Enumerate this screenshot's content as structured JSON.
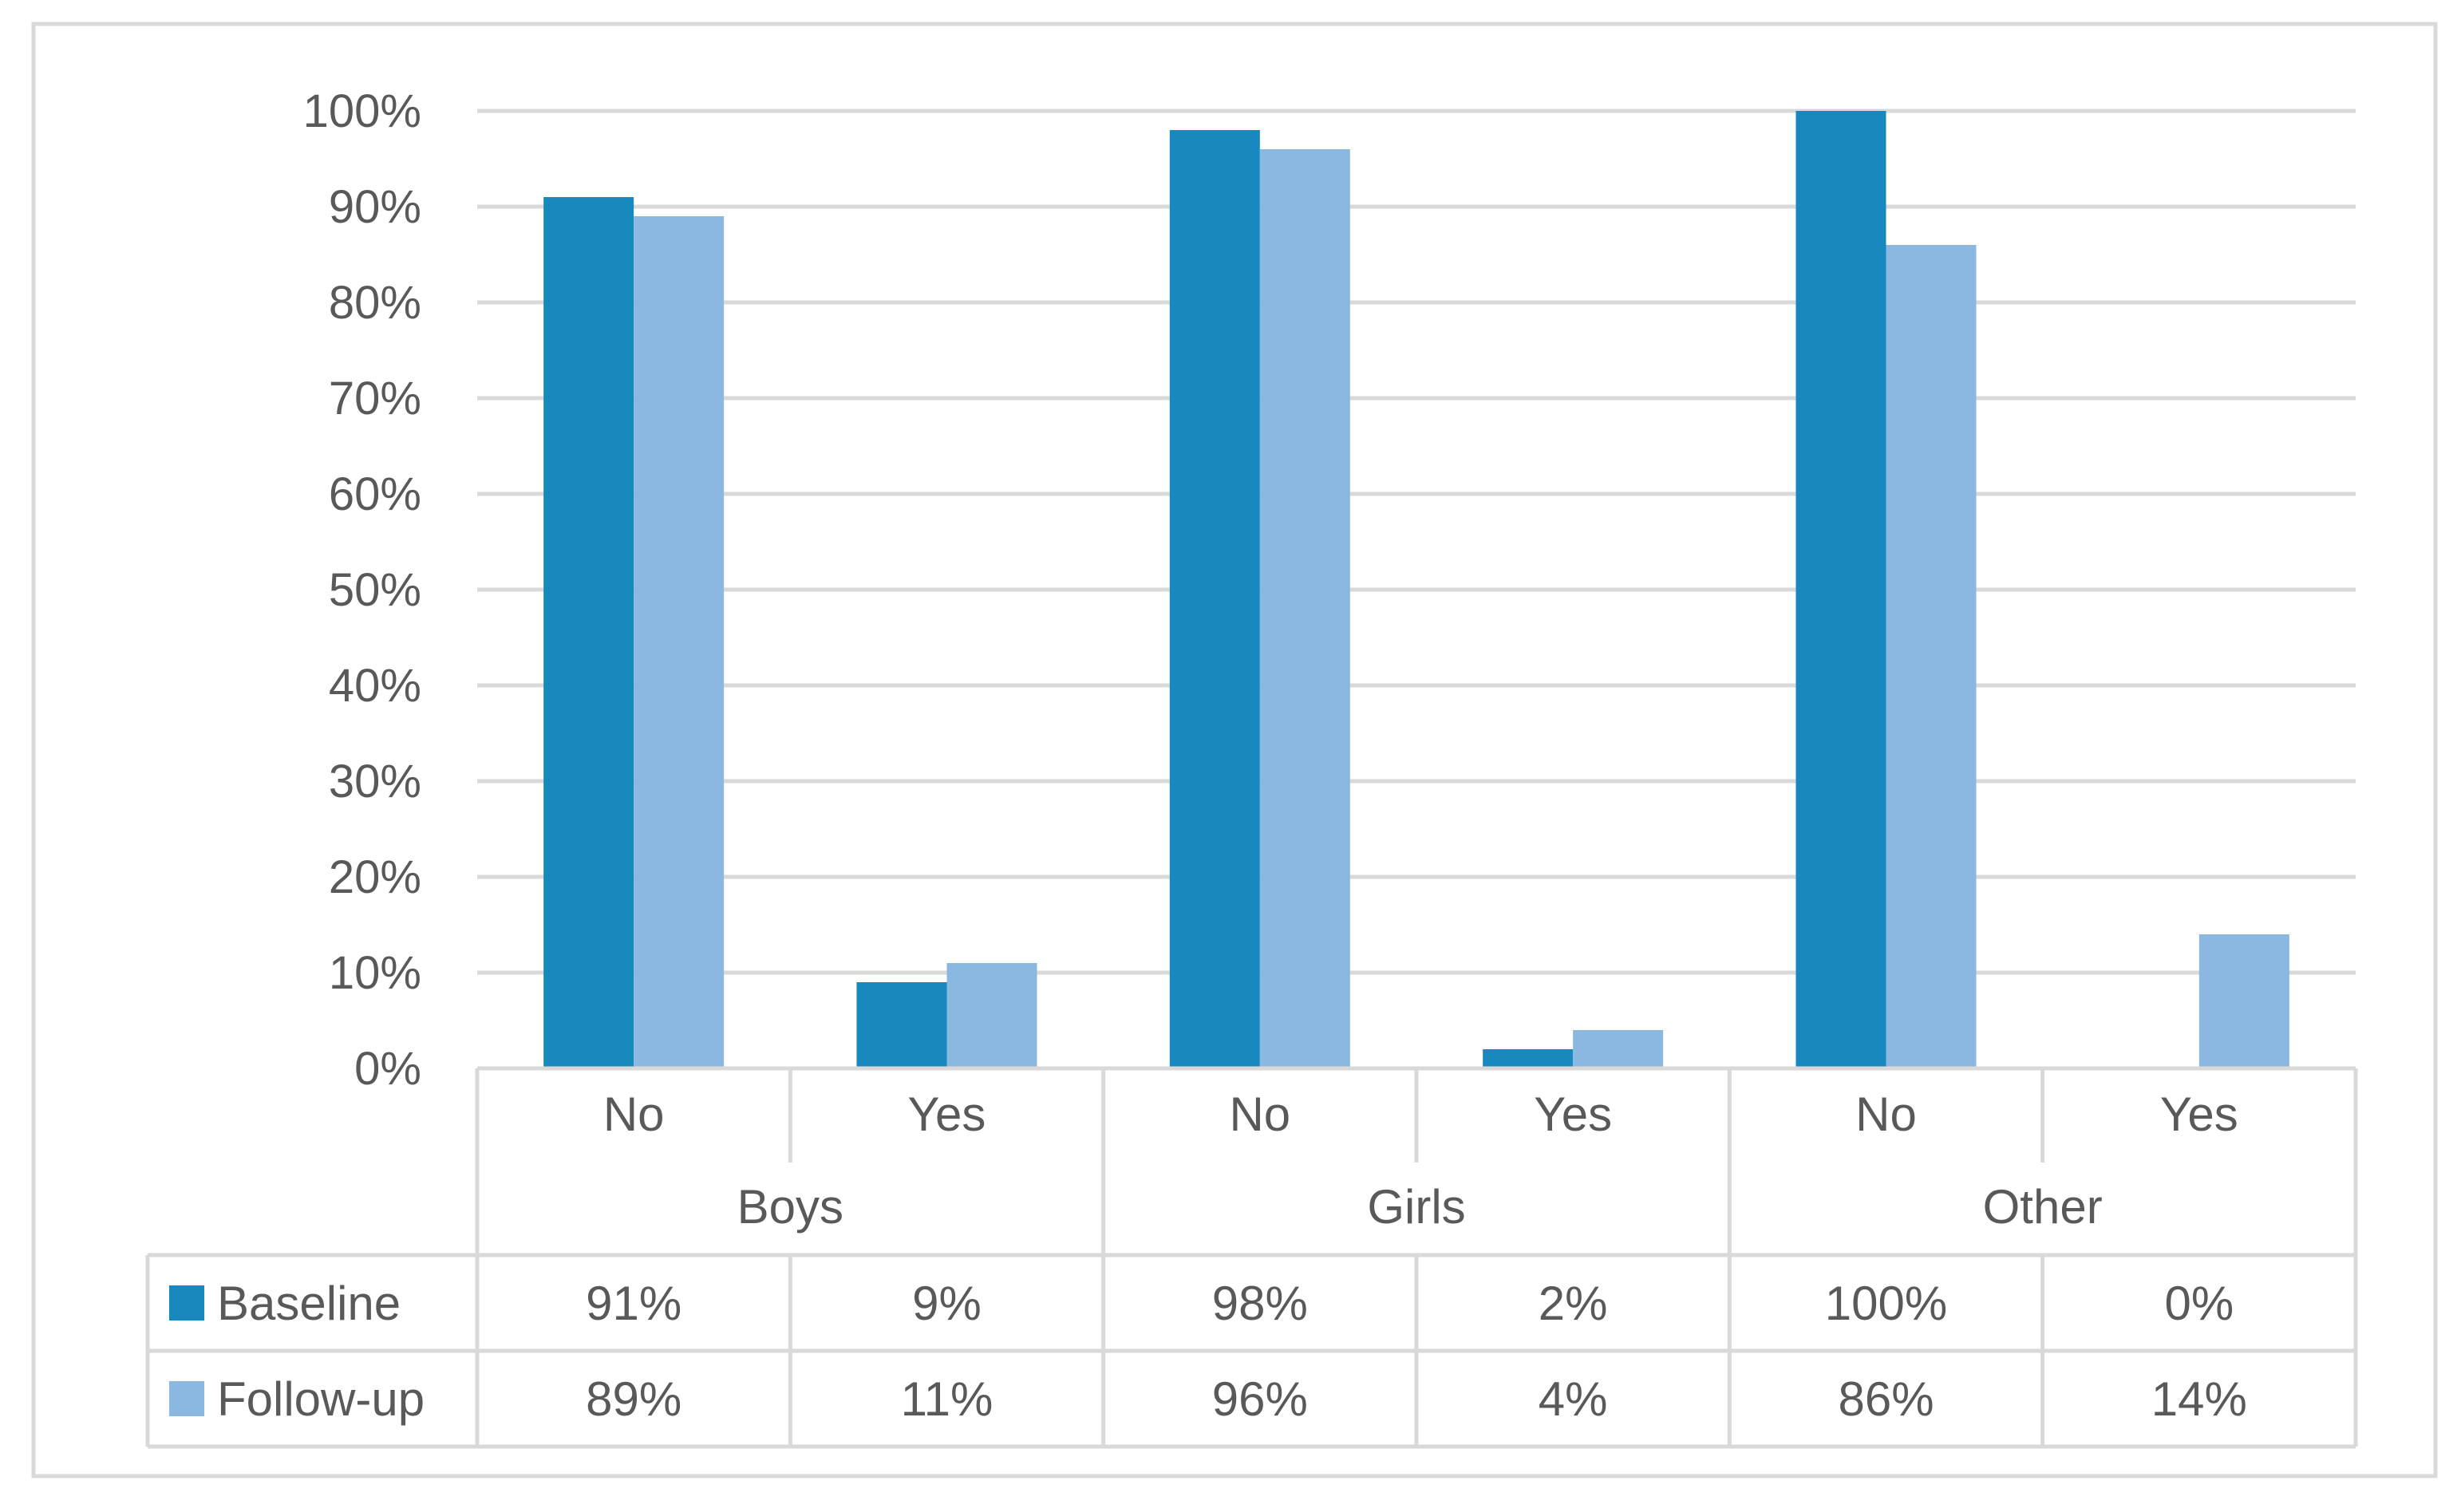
{
  "colors": {
    "baseline": "#1789BF",
    "followup": "#8AB8E0",
    "grid": "#D9D9D9",
    "frame": "#D9D9D9",
    "text": "#595959"
  },
  "chart_data": {
    "type": "bar",
    "title": "",
    "xlabel": "",
    "ylabel": "",
    "ylim": [
      0,
      100
    ],
    "y_ticks": [
      "0%",
      "10%",
      "20%",
      "30%",
      "40%",
      "50%",
      "60%",
      "70%",
      "80%",
      "90%",
      "100%"
    ],
    "groups": [
      "Boys",
      "Girls",
      "Other"
    ],
    "categories": [
      "No",
      "Yes",
      "No",
      "Yes",
      "No",
      "Yes"
    ],
    "series": [
      {
        "name": "Baseline",
        "color_key": "baseline",
        "values": [
          91,
          9,
          98,
          2,
          100,
          0
        ],
        "labels": [
          "91%",
          "9%",
          "98%",
          "2%",
          "100%",
          "0%"
        ]
      },
      {
        "name": "Follow-up",
        "color_key": "followup",
        "values": [
          89,
          11,
          96,
          4,
          86,
          14
        ],
        "labels": [
          "89%",
          "11%",
          "96%",
          "4%",
          "86%",
          "14%"
        ]
      }
    ],
    "legend_placement": "data-table-left",
    "grid": true
  }
}
